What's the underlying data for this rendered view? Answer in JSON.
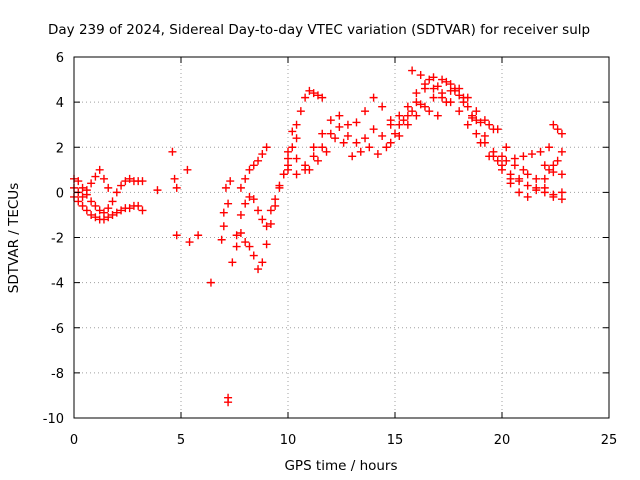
{
  "chart_data": {
    "type": "scatter",
    "title": "Day 239 of 2024, Sidereal Day-to-day VTEC variation (SDTVAR) for receiver sulp",
    "xlabel": "GPS time / hours",
    "ylabel": "SDTVAR / TECUs",
    "xlim": [
      0,
      25
    ],
    "ylim": [
      -10,
      6
    ],
    "xticks": [
      0,
      5,
      10,
      15,
      20,
      25
    ],
    "yticks": [
      -10,
      -8,
      -6,
      -4,
      -2,
      0,
      2,
      4,
      6
    ],
    "grid": true,
    "marker": "+",
    "series": [
      {
        "name": "SDTVAR",
        "color": "#ff0000",
        "points": [
          [
            0.0,
            0.6
          ],
          [
            0.2,
            0.5
          ],
          [
            0.4,
            0.2
          ],
          [
            0.6,
            -0.1
          ],
          [
            0.8,
            -0.4
          ],
          [
            1.0,
            -0.6
          ],
          [
            1.2,
            -0.8
          ],
          [
            1.4,
            -0.9
          ],
          [
            1.6,
            -0.7
          ],
          [
            1.8,
            -0.4
          ],
          [
            2.0,
            0.0
          ],
          [
            2.2,
            0.3
          ],
          [
            2.4,
            0.5
          ],
          [
            2.6,
            0.6
          ],
          [
            2.8,
            0.5
          ],
          [
            3.0,
            0.5
          ],
          [
            3.2,
            0.5
          ],
          [
            0.0,
            -0.2
          ],
          [
            0.2,
            -0.4
          ],
          [
            0.4,
            -0.6
          ],
          [
            0.6,
            -0.8
          ],
          [
            0.8,
            -1.0
          ],
          [
            1.0,
            -1.1
          ],
          [
            1.2,
            -1.2
          ],
          [
            1.4,
            -1.2
          ],
          [
            1.6,
            -1.1
          ],
          [
            1.8,
            -1.0
          ],
          [
            2.0,
            -0.9
          ],
          [
            2.2,
            -0.8
          ],
          [
            2.4,
            -0.7
          ],
          [
            2.6,
            -0.7
          ],
          [
            2.8,
            -0.6
          ],
          [
            3.0,
            -0.6
          ],
          [
            3.2,
            -0.8
          ],
          [
            0.0,
            0.2
          ],
          [
            0.2,
            0.0
          ],
          [
            0.4,
            -0.2
          ],
          [
            0.6,
            0.1
          ],
          [
            0.8,
            0.4
          ],
          [
            1.0,
            0.7
          ],
          [
            1.2,
            1.0
          ],
          [
            1.4,
            0.6
          ],
          [
            1.6,
            0.2
          ],
          [
            3.9,
            0.1
          ],
          [
            4.6,
            1.8
          ],
          [
            4.7,
            0.6
          ],
          [
            4.8,
            0.2
          ],
          [
            4.8,
            -1.9
          ],
          [
            5.3,
            1.0
          ],
          [
            5.4,
            -2.2
          ],
          [
            5.8,
            -1.9
          ],
          [
            6.4,
            -4.0
          ],
          [
            7.2,
            -9.1
          ],
          [
            7.2,
            -9.3
          ],
          [
            7.4,
            -3.1
          ],
          [
            7.1,
            0.2
          ],
          [
            7.2,
            -0.5
          ],
          [
            7.3,
            0.5
          ],
          [
            7.0,
            -1.5
          ],
          [
            6.9,
            -2.1
          ],
          [
            7.0,
            -0.9
          ],
          [
            7.6,
            -1.9
          ],
          [
            7.8,
            -1.0
          ],
          [
            8.0,
            -0.5
          ],
          [
            8.2,
            -0.2
          ],
          [
            8.4,
            -0.3
          ],
          [
            8.6,
            -0.8
          ],
          [
            8.8,
            -1.2
          ],
          [
            9.0,
            -1.5
          ],
          [
            9.2,
            -0.8
          ],
          [
            9.4,
            -0.3
          ],
          [
            9.6,
            0.3
          ],
          [
            9.8,
            0.8
          ],
          [
            10.0,
            1.2
          ],
          [
            7.6,
            -2.4
          ],
          [
            7.8,
            -1.8
          ],
          [
            8.0,
            -2.2
          ],
          [
            8.2,
            -2.4
          ],
          [
            8.4,
            -2.8
          ],
          [
            8.6,
            -3.4
          ],
          [
            8.8,
            -3.1
          ],
          [
            9.0,
            -2.3
          ],
          [
            9.2,
            -1.4
          ],
          [
            9.4,
            -0.6
          ],
          [
            9.6,
            0.2
          ],
          [
            9.8,
            0.8
          ],
          [
            10.0,
            1.5
          ],
          [
            10.2,
            2.0
          ],
          [
            10.4,
            2.4
          ],
          [
            7.8,
            0.2
          ],
          [
            8.0,
            0.6
          ],
          [
            8.2,
            1.0
          ],
          [
            8.4,
            1.2
          ],
          [
            8.6,
            1.4
          ],
          [
            8.8,
            1.7
          ],
          [
            9.0,
            2.0
          ],
          [
            10.2,
            2.7
          ],
          [
            10.4,
            3.0
          ],
          [
            10.6,
            3.6
          ],
          [
            10.8,
            4.2
          ],
          [
            11.0,
            4.5
          ],
          [
            11.2,
            4.4
          ],
          [
            11.4,
            4.3
          ],
          [
            11.6,
            4.2
          ],
          [
            10.0,
            1.8
          ],
          [
            10.4,
            1.5
          ],
          [
            10.8,
            1.0
          ],
          [
            11.2,
            1.6
          ],
          [
            11.6,
            2.0
          ],
          [
            12.0,
            2.6
          ],
          [
            12.4,
            2.9
          ],
          [
            12.8,
            2.5
          ],
          [
            13.2,
            2.2
          ],
          [
            13.6,
            2.4
          ],
          [
            14.0,
            2.8
          ],
          [
            14.4,
            2.5
          ],
          [
            14.8,
            2.2
          ],
          [
            15.2,
            2.5
          ],
          [
            15.6,
            3.0
          ],
          [
            16.0,
            3.4
          ],
          [
            16.4,
            3.8
          ],
          [
            16.8,
            4.2
          ],
          [
            17.2,
            4.4
          ],
          [
            17.6,
            4.5
          ],
          [
            18.0,
            4.3
          ],
          [
            18.4,
            3.8
          ],
          [
            18.8,
            3.2
          ],
          [
            19.2,
            2.5
          ],
          [
            19.6,
            1.8
          ],
          [
            20.0,
            1.2
          ],
          [
            20.4,
            0.8
          ],
          [
            20.8,
            0.5
          ],
          [
            21.2,
            0.3
          ],
          [
            21.6,
            0.1
          ],
          [
            22.0,
            0.0
          ],
          [
            22.4,
            -0.1
          ],
          [
            22.8,
            0.0
          ],
          [
            10.0,
            1.0
          ],
          [
            10.4,
            0.8
          ],
          [
            10.8,
            1.2
          ],
          [
            11.2,
            2.0
          ],
          [
            11.6,
            2.6
          ],
          [
            12.0,
            3.2
          ],
          [
            12.4,
            3.4
          ],
          [
            12.8,
            3.0
          ],
          [
            13.2,
            3.1
          ],
          [
            13.6,
            3.6
          ],
          [
            14.0,
            4.2
          ],
          [
            14.4,
            3.8
          ],
          [
            14.8,
            3.2
          ],
          [
            15.2,
            3.0
          ],
          [
            15.6,
            3.4
          ],
          [
            16.0,
            4.0
          ],
          [
            16.4,
            4.6
          ],
          [
            16.8,
            5.1
          ],
          [
            17.2,
            5.0
          ],
          [
            17.6,
            4.8
          ],
          [
            18.0,
            4.6
          ],
          [
            18.4,
            4.2
          ],
          [
            18.8,
            3.6
          ],
          [
            19.2,
            3.2
          ],
          [
            19.6,
            2.8
          ],
          [
            20.0,
            1.6
          ],
          [
            20.4,
            0.6
          ],
          [
            20.8,
            0.0
          ],
          [
            21.2,
            -0.2
          ],
          [
            21.6,
            0.2
          ],
          [
            22.0,
            0.6
          ],
          [
            22.4,
            0.9
          ],
          [
            22.8,
            0.8
          ],
          [
            11.0,
            1.0
          ],
          [
            11.4,
            1.4
          ],
          [
            11.8,
            1.8
          ],
          [
            12.2,
            2.4
          ],
          [
            12.6,
            2.2
          ],
          [
            13.0,
            1.6
          ],
          [
            13.4,
            1.8
          ],
          [
            13.8,
            2.0
          ],
          [
            14.2,
            1.7
          ],
          [
            14.6,
            2.0
          ],
          [
            15.0,
            2.6
          ],
          [
            15.4,
            3.2
          ],
          [
            15.8,
            3.6
          ],
          [
            16.2,
            3.9
          ],
          [
            16.6,
            3.6
          ],
          [
            17.0,
            3.4
          ],
          [
            17.4,
            4.0
          ],
          [
            17.8,
            4.6
          ],
          [
            18.2,
            4.2
          ],
          [
            18.6,
            3.4
          ],
          [
            19.0,
            2.2
          ],
          [
            19.4,
            1.6
          ],
          [
            19.8,
            1.4
          ],
          [
            20.2,
            1.4
          ],
          [
            20.6,
            1.5
          ],
          [
            21.0,
            1.6
          ],
          [
            21.4,
            1.7
          ],
          [
            21.8,
            1.8
          ],
          [
            22.2,
            2.0
          ],
          [
            14.8,
            3.0
          ],
          [
            15.2,
            3.4
          ],
          [
            15.6,
            3.8
          ],
          [
            16.0,
            4.4
          ],
          [
            16.4,
            4.8
          ],
          [
            16.8,
            4.6
          ],
          [
            17.2,
            4.2
          ],
          [
            17.6,
            4.0
          ],
          [
            18.0,
            3.6
          ],
          [
            18.4,
            3.0
          ],
          [
            18.8,
            2.6
          ],
          [
            19.2,
            2.2
          ],
          [
            19.6,
            1.6
          ],
          [
            20.0,
            1.0
          ],
          [
            20.4,
            0.4
          ],
          [
            20.8,
            0.6
          ],
          [
            21.2,
            0.8
          ],
          [
            21.6,
            0.6
          ],
          [
            22.0,
            0.2
          ],
          [
            22.4,
            -0.2
          ],
          [
            22.8,
            -0.3
          ],
          [
            15.8,
            5.4
          ],
          [
            16.2,
            5.2
          ],
          [
            16.6,
            5.0
          ],
          [
            17.0,
            4.7
          ],
          [
            17.4,
            4.9
          ],
          [
            17.8,
            4.5
          ],
          [
            18.2,
            4.0
          ],
          [
            18.6,
            3.3
          ],
          [
            19.0,
            3.1
          ],
          [
            19.4,
            3.0
          ],
          [
            19.8,
            2.8
          ],
          [
            20.2,
            2.0
          ],
          [
            20.6,
            1.2
          ],
          [
            21.0,
            1.0
          ],
          [
            22.0,
            1.2
          ],
          [
            22.2,
            1.0
          ],
          [
            22.4,
            1.2
          ],
          [
            22.6,
            1.4
          ],
          [
            22.8,
            1.8
          ],
          [
            22.4,
            3.0
          ],
          [
            22.6,
            2.8
          ],
          [
            22.8,
            2.6
          ]
        ]
      }
    ]
  }
}
